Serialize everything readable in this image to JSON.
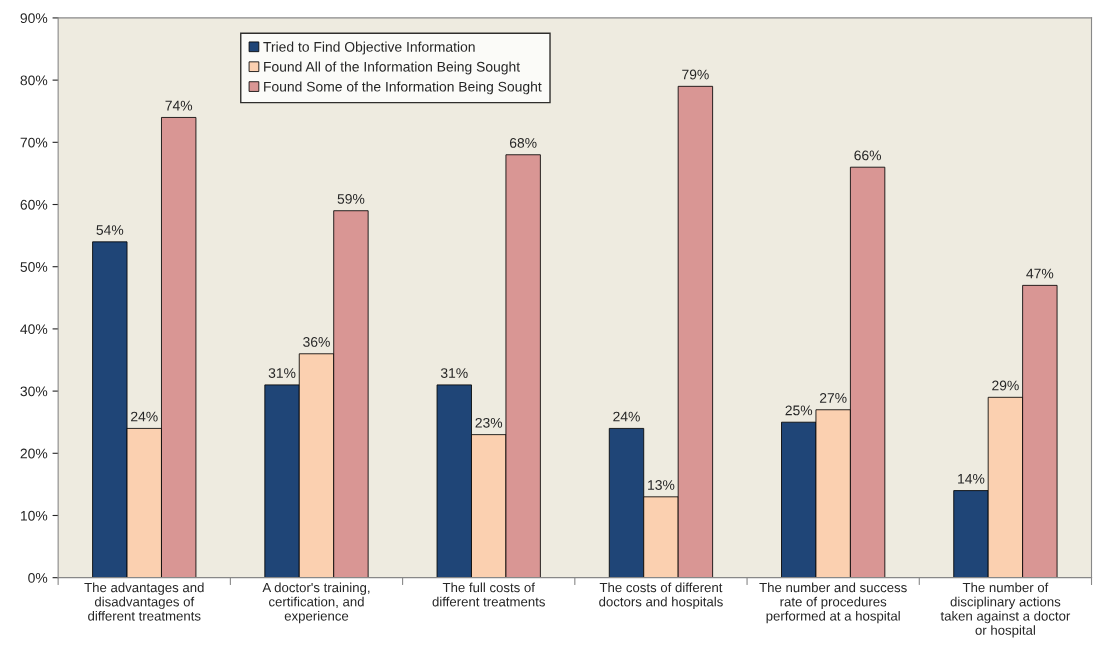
{
  "chart_data": {
    "type": "bar",
    "categories": [
      "The advantages and disadvantages of different treatments",
      "A doctor's training, certification, and experience",
      "The full costs of different treatments",
      "The costs of different doctors and hospitals",
      "The number and success rate of procedures performed at a hospital",
      "The number of disciplinary actions taken against a doctor or hospital"
    ],
    "series": [
      {
        "name": "Tried to Find Objective Information",
        "color": "#1f4577",
        "values": [
          54,
          31,
          31,
          24,
          25,
          14
        ],
        "value_labels": [
          "54%",
          "31%",
          "31%",
          "24%",
          "25%",
          "14%"
        ]
      },
      {
        "name": "Found All of the Information Being Sought",
        "color": "#fbd0b0",
        "values": [
          24,
          36,
          23,
          13,
          27,
          29
        ],
        "value_labels": [
          "24%",
          "36%",
          "23%",
          "13%",
          "27%",
          "29%"
        ]
      },
      {
        "name": "Found Some of the Information Being Sought",
        "color": "#d99694",
        "values": [
          74,
          59,
          68,
          79,
          66,
          47
        ],
        "value_labels": [
          "74%",
          "59%",
          "68%",
          "79%",
          "66%",
          "47%"
        ]
      }
    ],
    "ylim": [
      0,
      90
    ],
    "yticks": [
      {
        "value": 0,
        "label": "0%"
      },
      {
        "value": 10,
        "label": "10%"
      },
      {
        "value": 20,
        "label": "20%"
      },
      {
        "value": 30,
        "label": "30%"
      },
      {
        "value": 40,
        "label": "40%"
      },
      {
        "value": 50,
        "label": "50%"
      },
      {
        "value": 60,
        "label": "60%"
      },
      {
        "value": 70,
        "label": "70%"
      },
      {
        "value": 80,
        "label": "80%"
      },
      {
        "value": 90,
        "label": "90%"
      }
    ],
    "grid": false,
    "legend": "top left"
  }
}
